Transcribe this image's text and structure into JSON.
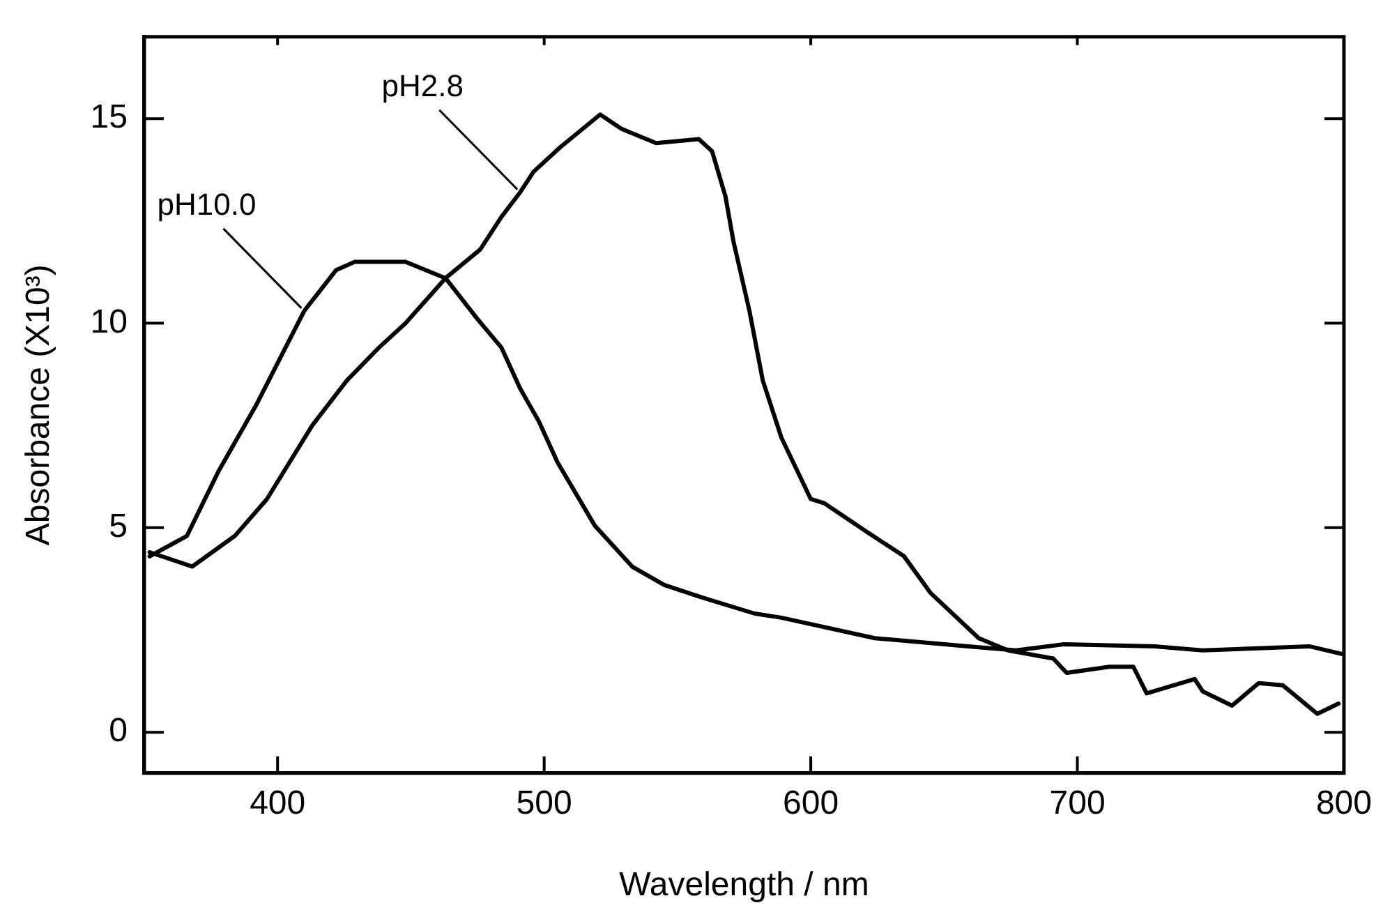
{
  "chart_data": {
    "type": "line",
    "xlabel": "Wavelength / nm",
    "ylabel": "Absorbance (X10³)",
    "xlim": [
      350,
      800
    ],
    "xticks": [
      400,
      500,
      600,
      700,
      800
    ],
    "ylim": [
      -1,
      17
    ],
    "yticks": [
      0,
      5,
      10,
      15
    ],
    "grid": false,
    "legend": false,
    "marker": "none",
    "line_style": "solid",
    "series": [
      {
        "name": "pH10.0",
        "color": "#000000",
        "x": [
          352,
          366,
          378,
          392,
          410,
          422,
          429,
          448,
          463,
          475,
          484,
          491,
          498,
          505,
          519,
          533,
          545,
          559,
          579,
          589,
          624,
          659,
          677,
          695,
          729,
          747,
          787,
          800
        ],
        "values": [
          4.3,
          4.8,
          6.4,
          8.0,
          10.3,
          11.3,
          11.5,
          11.5,
          11.1,
          10.1,
          9.4,
          8.4,
          7.6,
          6.6,
          5.05,
          4.05,
          3.6,
          3.3,
          2.9,
          2.8,
          2.3,
          2.1,
          2.0,
          2.15,
          2.1,
          2.0,
          2.1,
          1.9
        ]
      },
      {
        "name": "pH2.8",
        "color": "#000000",
        "x": [
          352,
          368,
          384,
          396,
          413,
          426,
          438,
          448,
          463,
          476,
          484,
          491,
          496,
          506,
          521,
          529,
          542,
          558,
          563,
          568,
          571,
          577,
          582,
          589,
          600,
          605,
          621,
          635,
          645,
          663,
          674,
          691,
          696,
          712,
          721,
          726,
          744,
          747,
          758,
          768,
          777,
          790,
          798
        ],
        "values": [
          4.4,
          4.05,
          4.8,
          5.7,
          7.5,
          8.6,
          9.4,
          10.0,
          11.1,
          11.8,
          12.6,
          13.2,
          13.7,
          14.3,
          15.1,
          14.75,
          14.4,
          14.5,
          14.2,
          13.1,
          12.0,
          10.3,
          8.6,
          7.2,
          5.7,
          5.6,
          4.9,
          4.3,
          3.4,
          2.3,
          2.0,
          1.8,
          1.45,
          1.6,
          1.6,
          0.95,
          1.3,
          1.0,
          0.65,
          1.2,
          1.15,
          0.45,
          0.7
        ]
      }
    ]
  }
}
